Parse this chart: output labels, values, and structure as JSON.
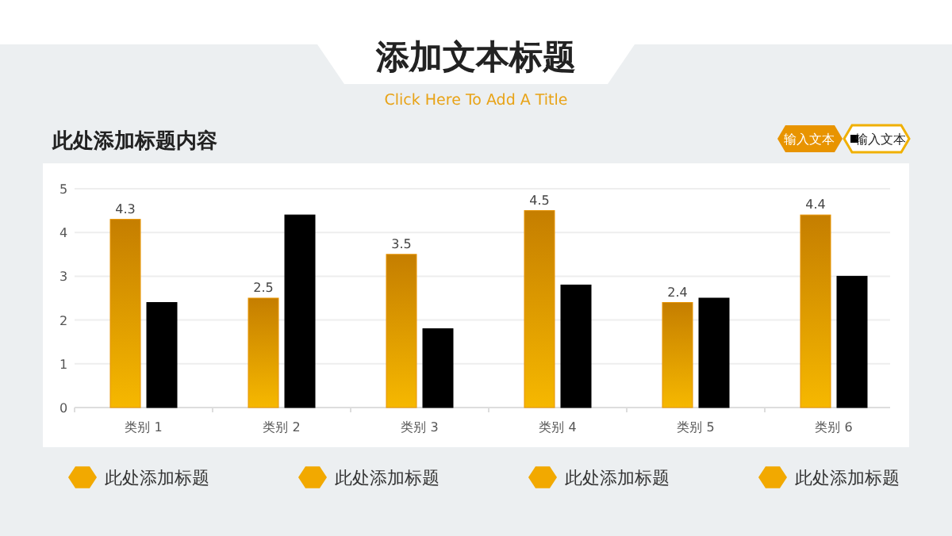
{
  "chart_data": {
    "type": "bar",
    "title": "添加文本标题",
    "subtitle": "Click Here To Add A Title",
    "annotations": [
      "此处添加标题内容",
      "此处添加标题",
      "此处添加标题",
      "此处添加标题",
      "此处添加标题"
    ],
    "categories": [
      "类别 1",
      "类别 2",
      "类别 3",
      "类别 4",
      "类别 5",
      "类别 6"
    ],
    "series": [
      {
        "name": "输入文本",
        "color": "#e89400",
        "values": [
          4.3,
          2.5,
          3.5,
          4.5,
          2.4,
          4.4
        ],
        "value_labels": [
          "4.3",
          "2.5",
          "3.5",
          "4.5",
          "2.4",
          "4.4"
        ]
      },
      {
        "name": "输入文本",
        "color": "#000000",
        "values": [
          2.4,
          4.4,
          1.8,
          2.8,
          2.5,
          3.0
        ]
      }
    ],
    "ylim": [
      0,
      5
    ],
    "yticks": [
      0,
      1,
      2,
      3,
      4,
      5
    ],
    "grid": "y",
    "legend": "top right"
  }
}
